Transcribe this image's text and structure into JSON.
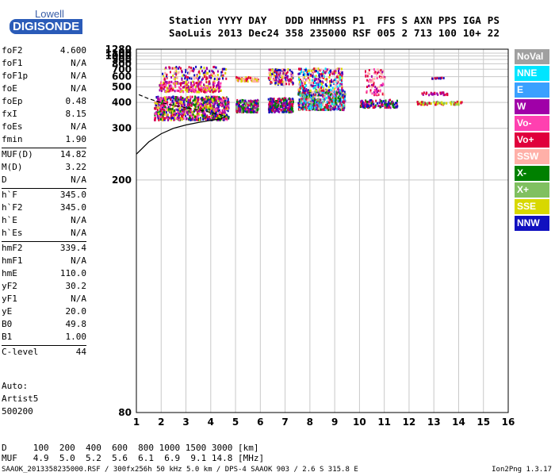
{
  "logo": {
    "line1": "Lowell",
    "line2": "DIGISONDE"
  },
  "header": {
    "line1": "Station YYYY DAY   DDD HHMMSS P1  FFS S AXN PPS IGA PS",
    "line2": "SaoLuis 2013 Dec24 358 235000 RSF 005 2 713 100 10+ 22"
  },
  "params": [
    {
      "name": "foF2",
      "value": "4.600"
    },
    {
      "name": "foF1",
      "value": "N/A"
    },
    {
      "name": "foF1p",
      "value": "N/A"
    },
    {
      "name": "foE",
      "value": "N/A"
    },
    {
      "name": "foEp",
      "value": "0.48"
    },
    {
      "name": "fxI",
      "value": "8.15"
    },
    {
      "name": "foEs",
      "value": "N/A"
    },
    {
      "name": "fmin",
      "value": "1.90"
    },
    {
      "name": "MUF(D)",
      "value": "14.82",
      "sep": true
    },
    {
      "name": "M(D)",
      "value": "3.22"
    },
    {
      "name": "D",
      "value": "N/A"
    },
    {
      "name": "h`F",
      "value": "345.0",
      "sep": true
    },
    {
      "name": "h`F2",
      "value": "345.0"
    },
    {
      "name": "h`E",
      "value": "N/A"
    },
    {
      "name": "h`Es",
      "value": "N/A"
    },
    {
      "name": "hmF2",
      "value": "339.4",
      "sep": true
    },
    {
      "name": "hmF1",
      "value": "N/A"
    },
    {
      "name": "hmE",
      "value": "110.0"
    },
    {
      "name": "yF2",
      "value": "30.2"
    },
    {
      "name": "yF1",
      "value": "N/A"
    },
    {
      "name": "yE",
      "value": "20.0"
    },
    {
      "name": "B0",
      "value": "49.8"
    },
    {
      "name": "B1",
      "value": "1.00"
    },
    {
      "name": "C-level",
      "value": "44",
      "sep": true
    }
  ],
  "auto": {
    "line1": "Auto:",
    "line2": "Artist5",
    "line3": "500200"
  },
  "legend": [
    {
      "label": "NoVal",
      "color": "#a0a0a0"
    },
    {
      "label": "NNE",
      "color": "#00e5ff"
    },
    {
      "label": "E",
      "color": "#3aa0ff"
    },
    {
      "label": "W",
      "color": "#a000a8"
    },
    {
      "label": "Vo-",
      "color": "#ff40b0"
    },
    {
      "label": "Vo+",
      "color": "#e0003c"
    },
    {
      "label": "SSW",
      "color": "#ffb0a8"
    },
    {
      "label": "X-",
      "color": "#008000"
    },
    {
      "label": "X+",
      "color": "#80c060"
    },
    {
      "label": "SSE",
      "color": "#d8d800"
    },
    {
      "label": "NNW",
      "color": "#1010c0"
    }
  ],
  "footer": {
    "line1": "D     100  200  400  600  800 1000 1500 3000 [km]",
    "line2": "MUF   4.9  5.0  5.2  5.6  6.1  6.9  9.1 14.8 [MHz]",
    "line3": "SAAOK_2013358235000.RSF / 300fx256h 50 kHz 5.0 km / DPS-4 SAAOK 903 / 2.6 S 315.8 E",
    "line4": "Ion2Png 1.3.17"
  },
  "chart_data": {
    "type": "scatter",
    "x_ticks": [
      "1",
      "2",
      "3",
      "4",
      "5",
      "6",
      "7",
      "8",
      "9",
      "10",
      "11",
      "12",
      "13",
      "14",
      "15",
      "16"
    ],
    "y_ticks": [
      "80",
      "200",
      "300",
      "400",
      "500",
      "600",
      "700",
      "800",
      "900",
      "1000",
      "1100",
      "1280"
    ],
    "xlim": [
      1,
      16
    ],
    "ylim": [
      80,
      1280
    ],
    "y_scale": "reciprocal",
    "grid": true,
    "clusters": [
      {
        "x": [
          1.7,
          4.7
        ],
        "y": [
          330,
          440
        ],
        "n": 900,
        "colors": [
          "#a000a8",
          "#e0003c",
          "#ff40b0",
          "#008000",
          "#1010c0",
          "#d8d800"
        ]
      },
      {
        "x": [
          1.9,
          4.4
        ],
        "y": [
          470,
          560
        ],
        "n": 260,
        "colors": [
          "#d8d800",
          "#e0003c",
          "#a000a8",
          "#ff40b0"
        ]
      },
      {
        "x": [
          2.0,
          4.6
        ],
        "y": [
          580,
          760
        ],
        "n": 150,
        "colors": [
          "#e0003c",
          "#a000a8",
          "#ffb0a8",
          "#d8d800",
          "#1010c0"
        ]
      },
      {
        "x": [
          5.0,
          5.9
        ],
        "y": [
          360,
          420
        ],
        "n": 200,
        "colors": [
          "#e0003c",
          "#a000a8",
          "#008000",
          "#1010c0",
          "#80c060"
        ]
      },
      {
        "x": [
          5.0,
          5.9
        ],
        "y": [
          560,
          610
        ],
        "n": 70,
        "colors": [
          "#d8d800",
          "#e0003c",
          "#ffb0a8"
        ]
      },
      {
        "x": [
          6.3,
          7.3
        ],
        "y": [
          360,
          430
        ],
        "n": 230,
        "colors": [
          "#e0003c",
          "#a000a8",
          "#1010c0",
          "#008000"
        ]
      },
      {
        "x": [
          6.3,
          7.3
        ],
        "y": [
          530,
          720
        ],
        "n": 160,
        "colors": [
          "#d8d800",
          "#e0003c",
          "#a000a8",
          "#ffb0a8",
          "#1010c0"
        ]
      },
      {
        "x": [
          7.5,
          9.4
        ],
        "y": [
          370,
          480
        ],
        "n": 650,
        "colors": [
          "#00e5ff",
          "#3aa0ff",
          "#a000a8",
          "#e0003c",
          "#1010c0",
          "#008000",
          "#80c060",
          "#ffb0a8"
        ]
      },
      {
        "x": [
          7.5,
          9.3
        ],
        "y": [
          480,
          730
        ],
        "n": 300,
        "colors": [
          "#00e5ff",
          "#e0003c",
          "#a000a8",
          "#d8d800",
          "#ffb0a8",
          "#1010c0"
        ]
      },
      {
        "x": [
          10.0,
          11.5
        ],
        "y": [
          380,
          420
        ],
        "n": 120,
        "colors": [
          "#008000",
          "#e0003c",
          "#a000a8",
          "#1010c0"
        ]
      },
      {
        "x": [
          10.2,
          11.0
        ],
        "y": [
          450,
          720
        ],
        "n": 90,
        "colors": [
          "#e0003c",
          "#a000a8",
          "#ffb0a8",
          "#ff40b0"
        ]
      },
      {
        "x": [
          12.3,
          14.1
        ],
        "y": [
          395,
          410
        ],
        "n": 80,
        "colors": [
          "#d8d800",
          "#80c060",
          "#e0003c"
        ]
      },
      {
        "x": [
          12.4,
          13.6
        ],
        "y": [
          450,
          470
        ],
        "n": 30,
        "colors": [
          "#e0003c",
          "#a000a8"
        ]
      },
      {
        "x": [
          12.8,
          13.4
        ],
        "y": [
          590,
          600
        ],
        "n": 12,
        "colors": [
          "#e0003c",
          "#1010c0"
        ]
      }
    ],
    "profile_solid": [
      [
        1.0,
        240
      ],
      [
        1.5,
        265
      ],
      [
        2.0,
        285
      ],
      [
        2.5,
        300
      ],
      [
        3.0,
        310
      ],
      [
        3.5,
        318
      ],
      [
        4.0,
        325
      ],
      [
        4.4,
        330
      ],
      [
        4.6,
        340
      ]
    ],
    "profile_dashed": [
      [
        1.1,
        445
      ],
      [
        1.5,
        420
      ],
      [
        2.0,
        400
      ],
      [
        2.5,
        385
      ],
      [
        3.0,
        375
      ],
      [
        3.5,
        365
      ],
      [
        4.0,
        355
      ],
      [
        4.4,
        345
      ],
      [
        4.6,
        340
      ]
    ]
  }
}
